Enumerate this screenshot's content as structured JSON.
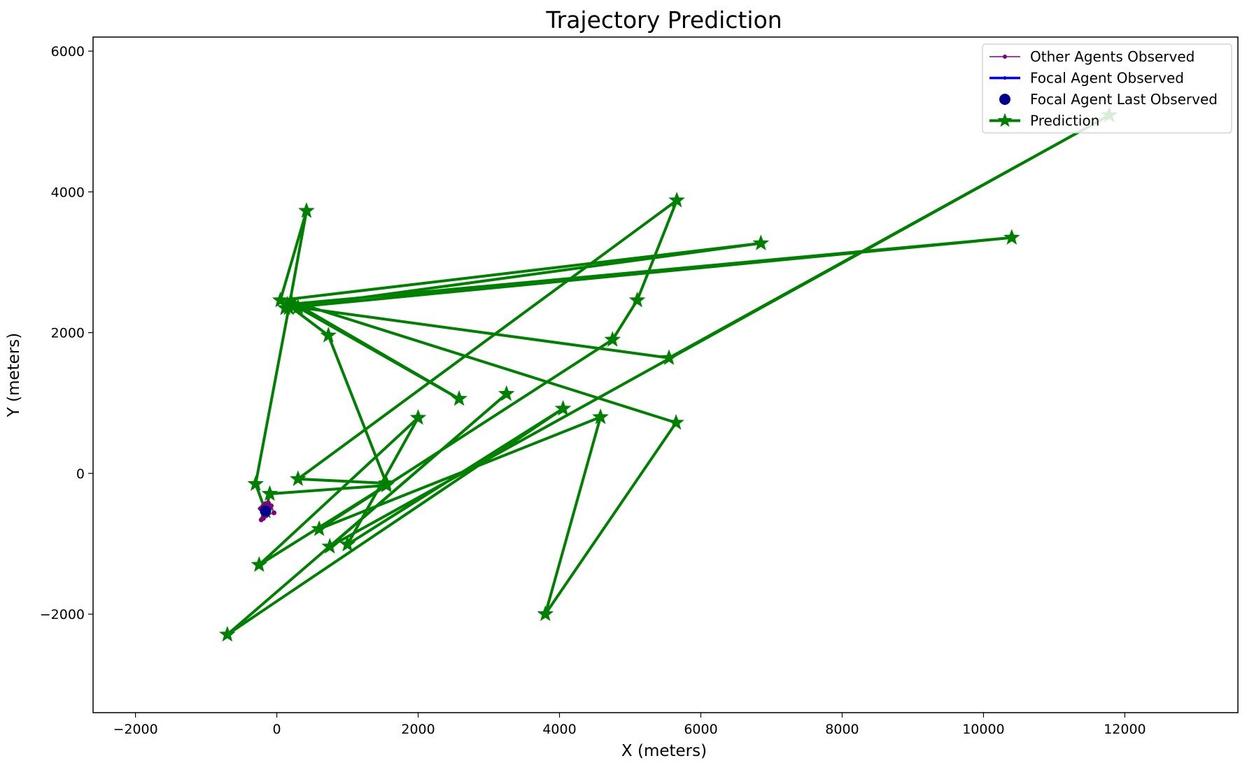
{
  "chart_data": {
    "type": "line",
    "title": "Trajectory Prediction",
    "xlabel": "X (meters)",
    "ylabel": "Y (meters)",
    "xlim": [
      -2600,
      13600
    ],
    "ylim": [
      -3400,
      6200
    ],
    "xticks": [
      -2000,
      0,
      2000,
      4000,
      6000,
      8000,
      10000,
      12000
    ],
    "yticks": [
      -2000,
      0,
      2000,
      4000,
      6000
    ],
    "grid": false,
    "legend_position": "top-right",
    "colors": {
      "other_agents": "#800080",
      "focal_observed": "#0000ff",
      "focal_last": "#00008b",
      "prediction": "#008000"
    },
    "legend": [
      {
        "key": "other_agents",
        "label": "Other Agents Observed"
      },
      {
        "key": "focal_observed",
        "label": "Focal Agent Observed"
      },
      {
        "key": "focal_last",
        "label": "Focal Agent Last Observed"
      },
      {
        "key": "prediction",
        "label": "Prediction"
      }
    ],
    "series": [
      {
        "name": "Other Agents Observed",
        "key": "other_agents",
        "x": [
          -230,
          -200,
          -160,
          -120,
          -80,
          -40,
          -150,
          -190,
          -220,
          -140,
          -100
        ],
        "y": [
          -500,
          -470,
          -430,
          -420,
          -460,
          -560,
          -600,
          -640,
          -660,
          -520,
          -480
        ]
      },
      {
        "name": "Focal Agent Observed",
        "key": "focal_observed",
        "x": [
          -200,
          -190,
          -180,
          -170,
          -160
        ],
        "y": [
          -560,
          -550,
          -545,
          -540,
          -535
        ]
      },
      {
        "name": "Focal Agent Last Observed",
        "key": "focal_last",
        "x": [
          -160
        ],
        "y": [
          -535
        ]
      },
      {
        "name": "Prediction",
        "key": "prediction",
        "x": [
          -160,
          -300,
          170,
          420,
          50,
          6850,
          120,
          10400,
          150,
          730,
          1550,
          300,
          5660,
          5100,
          4750,
          600,
          4580,
          3800,
          5650,
          200,
          2580,
          300,
          5550,
          11780,
          750,
          3250,
          -700,
          4050,
          1000,
          2000,
          -250,
          1550,
          -100,
          -160
        ],
        "y": [
          -535,
          -150,
          2350,
          3730,
          2460,
          3270,
          2350,
          3350,
          2400,
          1960,
          -140,
          -80,
          3880,
          2460,
          1900,
          -790,
          800,
          -2000,
          720,
          2450,
          1060,
          2360,
          1640,
          5090,
          -1040,
          1130,
          -2290,
          920,
          -1010,
          790,
          -1300,
          -170,
          -290,
          -535
        ]
      }
    ]
  }
}
